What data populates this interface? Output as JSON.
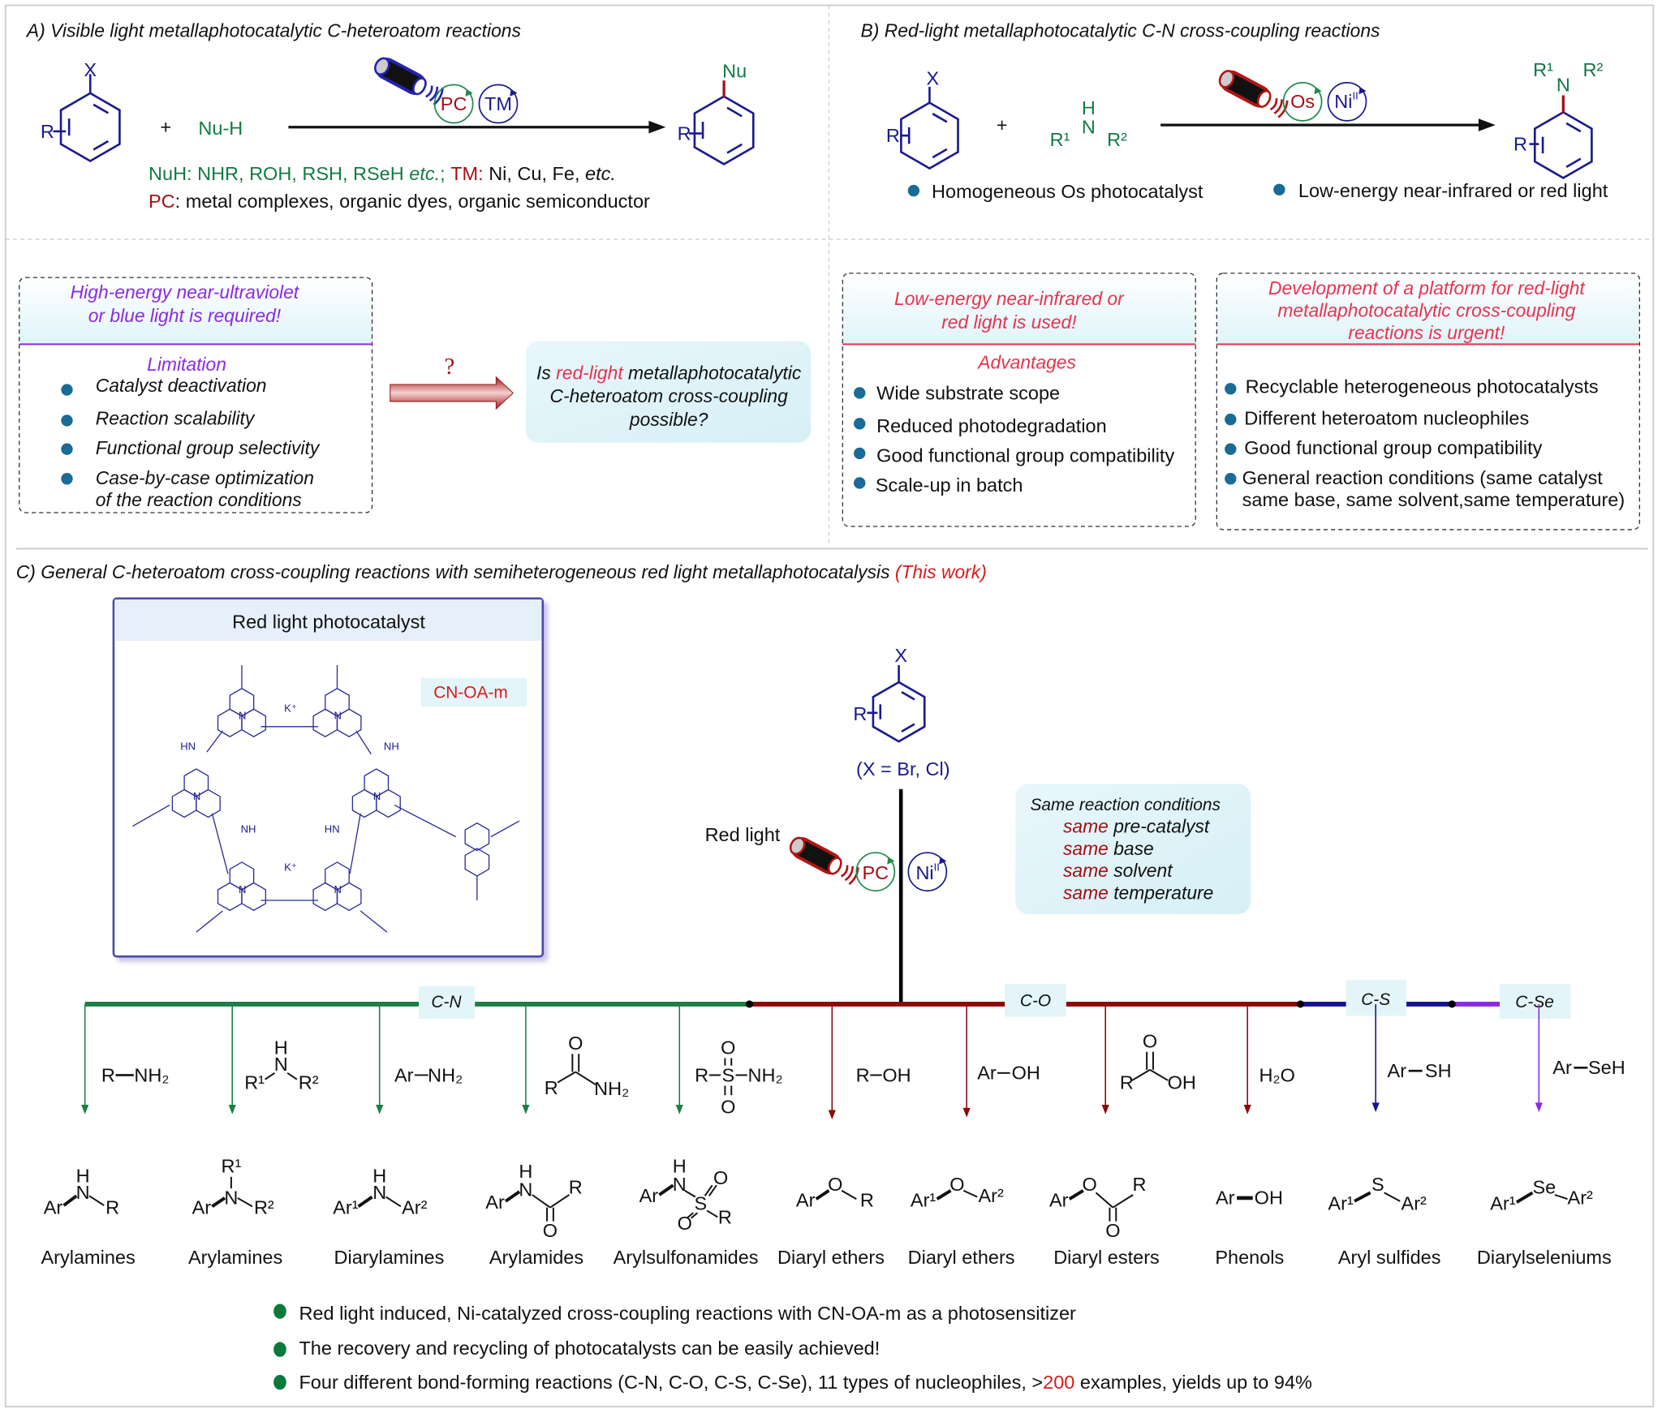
{
  "section_a": {
    "title": "A) Visible light metallaphotocatalytic C-heteroatom reactions",
    "x_label": "X",
    "r_label": "R",
    "plus": "+",
    "nuh": "Nu-H",
    "pc": "PC",
    "tm": "TM",
    "nu": "Nu",
    "r_product": "R",
    "line1": {
      "nuh": "NuH: NHR, ROH, RSH, RSeH ",
      "etc1": "etc.",
      "sep": "; ",
      "tm": "TM:",
      "metals": " Ni, Cu, Fe, ",
      "etc2": "etc."
    },
    "line2": {
      "pc": "PC",
      "text": ": metal complexes, organic dyes, organic semiconductor"
    }
  },
  "section_b": {
    "title": "B) Red-light metallaphotocatalytic C-N cross-coupling reactions",
    "x_label": "X",
    "r_label": "R",
    "plus": "+",
    "amine": {
      "h": "H",
      "n": "N",
      "r1": "R¹",
      "r2": "R²"
    },
    "os": "Os",
    "ni": "Ni",
    "ni_ox": "II",
    "product": {
      "r1": "R¹",
      "n": "N",
      "r2": "R²",
      "r": "R"
    },
    "bullets": [
      "Homogeneous Os photocatalyst",
      "Low-energy near-infrared or red light"
    ]
  },
  "limitation_box": {
    "header": [
      "High-energy near-ultraviolet",
      "or blue light is required!"
    ],
    "title": "Limitation",
    "items": [
      "Catalyst deactivation",
      "Reaction scalability",
      "Functional group selectivity",
      "Case-by-case optimization",
      "of the reaction conditions"
    ]
  },
  "question": {
    "mark": "?",
    "pre": "Is ",
    "red": "red-light",
    "post": " metallaphotocatalytic",
    "line2": "C-heteroatom cross-coupling",
    "line3": "possible?"
  },
  "advantages_box": {
    "header": [
      "Low-energy near-infrared or",
      "red light is used!"
    ],
    "title": "Advantages",
    "items": [
      "Wide substrate scope",
      "Reduced photodegradation",
      "Good functional group compatibility",
      "Scale-up in batch"
    ]
  },
  "platform_box": {
    "header": [
      "Development of a platform for red-light",
      "metallaphotocatalytic cross-coupling",
      "reactions is urgent!"
    ],
    "items": [
      "Recyclable heterogeneous photocatalysts",
      "Different heteroatom nucleophiles",
      "Good functional group compatibility",
      "General reaction conditions (same catalyst",
      "same base, same solvent,same temperature)"
    ]
  },
  "section_c": {
    "title": "C) General C-heteroatom cross-coupling reactions with semiheterogeneous red light metallaphotocatalysis ",
    "this_work": "(This work)",
    "catalyst_box": {
      "title": "Red light photocatalyst",
      "name": "CN-OA-m",
      "k": "K⁺",
      "hn": "HN",
      "nh": "NH",
      "ring_atom": "N"
    },
    "substrate": {
      "x": "X",
      "r": "R",
      "note": "(X = Br, Cl)"
    },
    "red_light": "Red light",
    "pc": "PC",
    "ni": "Ni",
    "ni_ox": "II",
    "conditions": {
      "title": "Same reaction conditions",
      "same": "same",
      "items": [
        " pre-catalyst",
        " base",
        " solvent",
        " temperature"
      ]
    },
    "bond_types": [
      {
        "label": "C-N",
        "color": "#1e7e46"
      },
      {
        "label": "C-O",
        "color": "#8b0a0a"
      },
      {
        "label": "C-S",
        "color": "#141490"
      },
      {
        "label": "C-Se",
        "color": "#8a2be2"
      }
    ],
    "nucleophiles": [
      {
        "atoms": [
          "R",
          "NH₂"
        ]
      },
      {
        "atoms": [
          "H",
          "N",
          "R¹",
          "R²"
        ]
      },
      {
        "atoms": [
          "Ar",
          "NH₂"
        ]
      },
      {
        "atoms": [
          "O",
          "R",
          "NH₂"
        ]
      },
      {
        "atoms": [
          "R",
          "S",
          "NH₂",
          "O",
          "O"
        ]
      },
      {
        "atoms": [
          "R",
          "OH"
        ]
      },
      {
        "atoms": [
          "Ar",
          "OH"
        ]
      },
      {
        "atoms": [
          "O",
          "R",
          "OH"
        ]
      },
      {
        "atoms": [
          "H₂O"
        ]
      },
      {
        "atoms": [
          "Ar",
          "SH"
        ]
      },
      {
        "atoms": [
          "Ar",
          "SeH"
        ]
      }
    ],
    "products": [
      {
        "name": "Arylamines",
        "atoms": [
          "H",
          "N",
          "Ar",
          "R"
        ]
      },
      {
        "name": "Arylamines",
        "atoms": [
          "R¹",
          "N",
          "Ar",
          "R²"
        ]
      },
      {
        "name": "Diarylamines",
        "atoms": [
          "H",
          "N",
          "Ar¹",
          "Ar²"
        ]
      },
      {
        "name": "Arylamides",
        "atoms": [
          "H",
          "N",
          "Ar",
          "R",
          "O"
        ]
      },
      {
        "name": "Arylsulfonamides",
        "atoms": [
          "H",
          "N",
          "Ar",
          "S",
          "O",
          "O",
          "R"
        ]
      },
      {
        "name": "Diaryl ethers",
        "atoms": [
          "Ar",
          "O",
          "R"
        ]
      },
      {
        "name": "Diaryl ethers",
        "atoms": [
          "Ar¹",
          "O",
          "Ar²"
        ]
      },
      {
        "name": "Diaryl esters",
        "atoms": [
          "Ar",
          "O",
          "R",
          "O"
        ]
      },
      {
        "name": "Phenols",
        "atoms": [
          "Ar",
          "OH"
        ]
      },
      {
        "name": "Aryl sulfides",
        "atoms": [
          "Ar¹",
          "S",
          "Ar²"
        ]
      },
      {
        "name": "Diarylseleniums",
        "atoms": [
          "Ar¹",
          "Se",
          "Ar²"
        ]
      }
    ],
    "summary": [
      {
        "text": "Red light induced, Ni-catalyzed cross-coupling reactions with CN-OA-m as a photosensitizer"
      },
      {
        "text": "The recovery and recycling of photocatalysts can be easily achieved!"
      },
      {
        "pre": "Four different bond-forming reactions (C-N, C-O, C-S, C-Se), 11 types of nucleophiles, >",
        "red": "200",
        "post": " examples,  yields up to 94%"
      }
    ]
  },
  "colors": {
    "structure_blue": "#1a1a8c",
    "nucleophile_green": "#137a45",
    "accent_red": "#a50f14",
    "pink_red": "#e8334f",
    "bullet_blue": "#1a6b96",
    "bullet_green": "#0a7a3a",
    "violet": "#8a2be2"
  }
}
